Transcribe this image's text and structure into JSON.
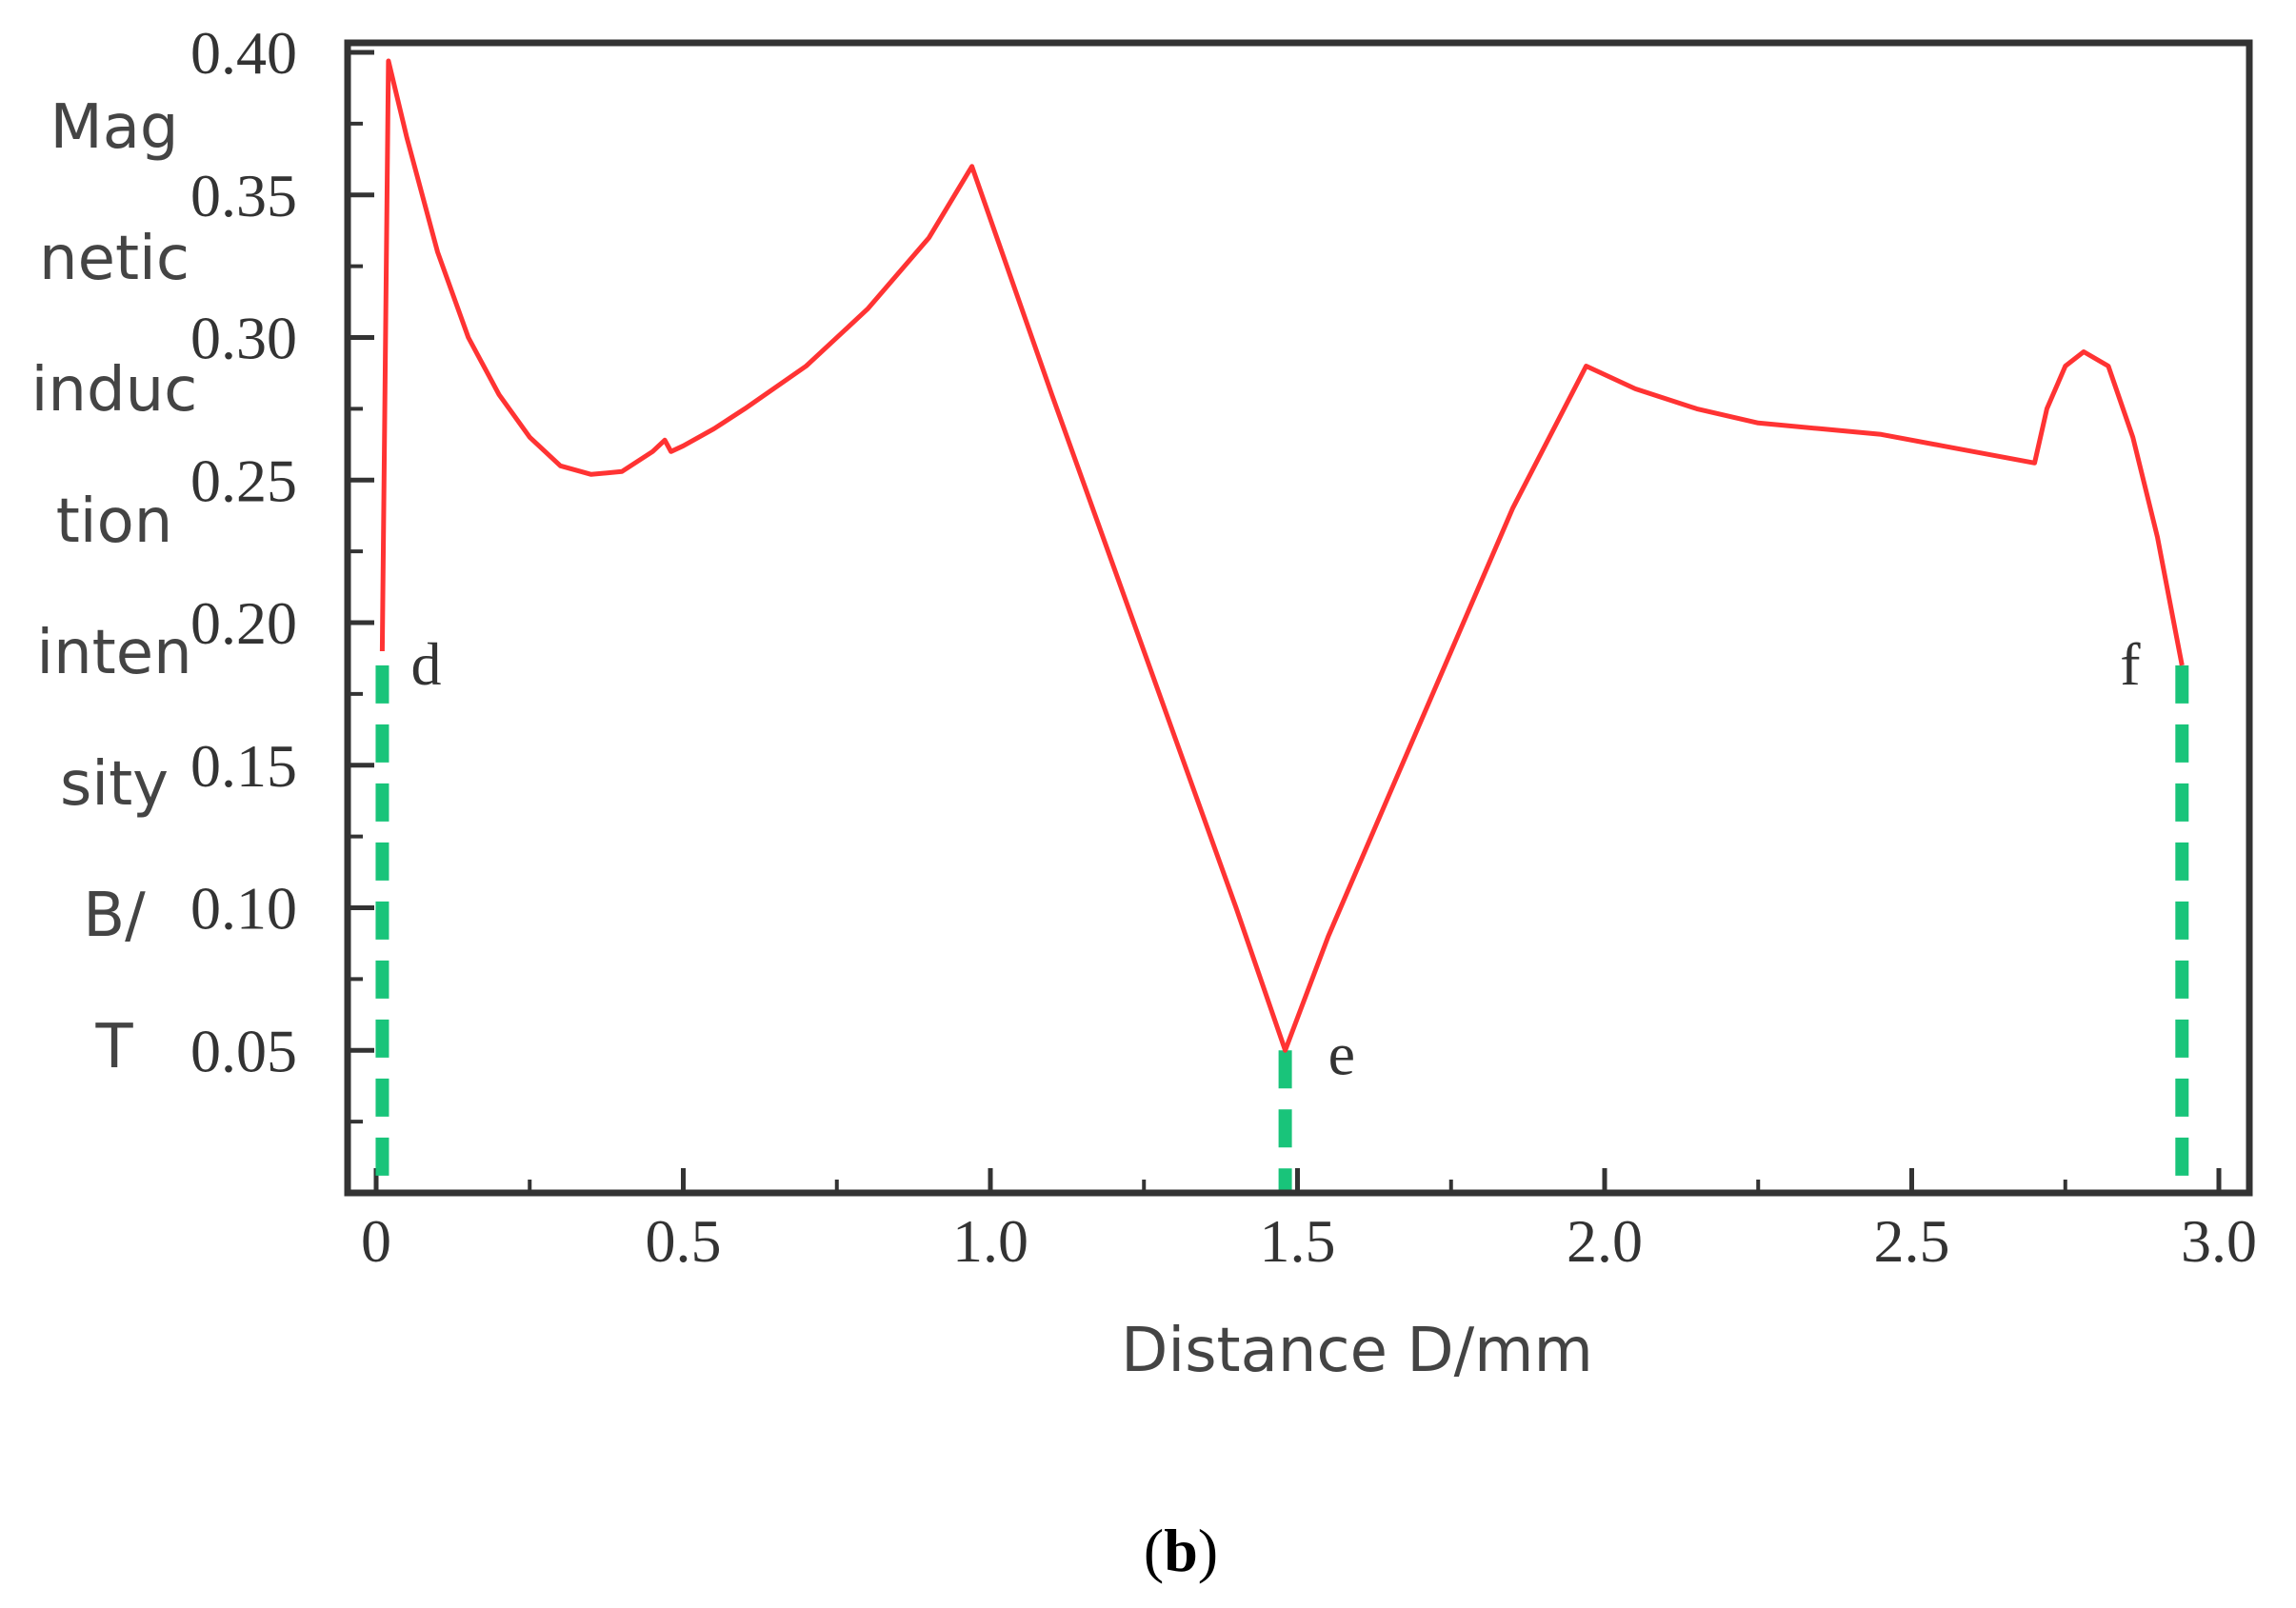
{
  "chart_data": {
    "type": "line",
    "ylabel_lines": [
      "Mag",
      "netic",
      "induc",
      "tion",
      "inten",
      "sity",
      "B/",
      "T"
    ],
    "xlabel": "Distance D/mm",
    "xlim": [
      0,
      3.0
    ],
    "ylim": [
      0,
      0.4
    ],
    "x_ticks": [
      {
        "value": 0,
        "label": "0"
      },
      {
        "value": 0.5,
        "label": "0.5"
      },
      {
        "value": 1.0,
        "label": "1.0"
      },
      {
        "value": 1.5,
        "label": "1.5"
      },
      {
        "value": 2.0,
        "label": "2.0"
      },
      {
        "value": 2.5,
        "label": "2.5"
      },
      {
        "value": 3.0,
        "label": "3.0"
      }
    ],
    "y_ticks": [
      {
        "value": 0.05,
        "label": "0.05"
      },
      {
        "value": 0.1,
        "label": "0.10"
      },
      {
        "value": 0.15,
        "label": "0.15"
      },
      {
        "value": 0.2,
        "label": "0.20"
      },
      {
        "value": 0.25,
        "label": "0.25"
      },
      {
        "value": 0.3,
        "label": "0.30"
      },
      {
        "value": 0.35,
        "label": "0.35"
      },
      {
        "value": 0.4,
        "label": "0.40"
      }
    ],
    "grid": false,
    "series": [
      {
        "color": "#ff3333",
        "x": [
          0.01,
          0.02,
          0.05,
          0.1,
          0.15,
          0.2,
          0.25,
          0.3,
          0.35,
          0.4,
          0.45,
          0.47,
          0.48,
          0.5,
          0.55,
          0.6,
          0.7,
          0.8,
          0.9,
          0.97,
          1.1,
          1.2,
          1.3,
          1.4,
          1.48,
          1.55,
          1.65,
          1.75,
          1.85,
          1.97,
          2.05,
          2.15,
          2.25,
          2.35,
          2.45,
          2.55,
          2.65,
          2.7,
          2.72,
          2.75,
          2.78,
          2.82,
          2.86,
          2.9,
          2.94
        ],
        "y": [
          0.19,
          0.397,
          0.37,
          0.33,
          0.3,
          0.28,
          0.265,
          0.255,
          0.252,
          0.253,
          0.26,
          0.264,
          0.26,
          0.262,
          0.268,
          0.275,
          0.29,
          0.31,
          0.335,
          0.36,
          0.28,
          0.22,
          0.16,
          0.1,
          0.05,
          0.09,
          0.14,
          0.19,
          0.24,
          0.29,
          0.282,
          0.275,
          0.27,
          0.268,
          0.266,
          0.262,
          0.258,
          0.256,
          0.275,
          0.29,
          0.295,
          0.29,
          0.265,
          0.23,
          0.185
        ]
      }
    ],
    "markers": [
      {
        "label": "d",
        "x": 0.01,
        "y": 0.185,
        "color": "#19c47a"
      },
      {
        "label": "e",
        "x": 1.48,
        "y": 0.05,
        "color": "#19c47a"
      },
      {
        "label": "f",
        "x": 2.94,
        "y": 0.185,
        "color": "#19c47a"
      }
    ]
  },
  "caption": {
    "open": "(",
    "letter": "b",
    "close": ")"
  }
}
